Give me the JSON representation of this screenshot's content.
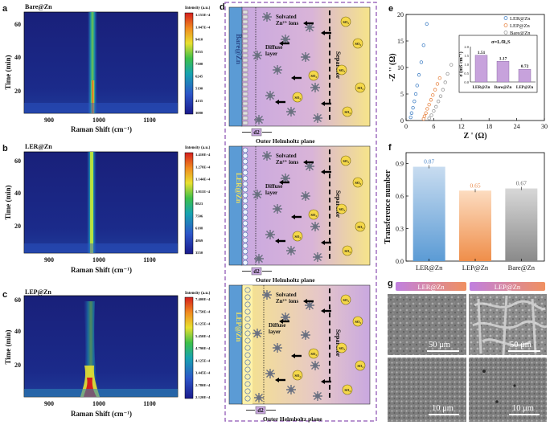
{
  "panel_letters": {
    "a": "a",
    "b": "b",
    "c": "c",
    "d": "d",
    "e": "e",
    "f": "f",
    "g": "g"
  },
  "raman": [
    {
      "sample": "Bare@Zn",
      "xlabel": "Raman Shift (cm⁻¹)",
      "ylabel": "Time (min)",
      "yticks": [
        "20",
        "40",
        "60"
      ],
      "xticks": [
        "900",
        "1000",
        "1100"
      ],
      "cb_title": "Intensity (a.u.)",
      "cb_ticks": [
        "1.153E+4",
        "1.047E+4",
        "9410",
        "8355",
        "7300",
        "6245",
        "5190",
        "4135",
        "3080"
      ]
    },
    {
      "sample": "LER@Zn",
      "xlabel": "Raman Shift (cm⁻¹)",
      "ylabel": "Time (min)",
      "yticks": [
        "20",
        "40",
        "60"
      ],
      "xticks": [
        "900",
        "1000",
        "1100"
      ],
      "cb_title": "Intensity (a.u.)",
      "cb_ticks": [
        "1.410E+4",
        "1.278E+4",
        "1.144E+4",
        "1.011E+4",
        "8823",
        "7506",
        "6188",
        "4869",
        "3550"
      ]
    },
    {
      "sample": "LEP@Zn",
      "xlabel": "Raman Shift (cm⁻¹)",
      "ylabel": "Time (min)",
      "yticks": [
        "20",
        "40",
        "60"
      ],
      "xticks": [
        "900",
        "1000",
        "1100"
      ],
      "cb_title": "Intensity (a.u.)",
      "cb_ticks": [
        "7.400E+4",
        "6.750E+4",
        "6.125E+4",
        "5.450E+4",
        "4.790E+4",
        "4.125E+4",
        "3.445E+4",
        "2.780E+4",
        "2.120E+4"
      ]
    }
  ],
  "schematic": {
    "panels": [
      {
        "electrode": "Bare@Zn",
        "ions": "Solvated Zn²⁺ ions",
        "diffuse": "Diffuse layer",
        "separator": "Separator",
        "d2": "d2",
        "plane": "Outer Helmholtz plane"
      },
      {
        "electrode": "LER@Zn",
        "ions": "Solvated Zn²⁺ ions",
        "diffuse": "Diffuse layer",
        "separator": "Separator",
        "d2": "d2",
        "plane": "Outer Helmholtz plane"
      },
      {
        "electrode": "LEP@Zn",
        "ions": "Solvated Zn²⁺ ions",
        "diffuse": "Diffuse layer",
        "separator": "Separator",
        "d2": "d2",
        "plane": "Outer Helmholtz plane"
      }
    ],
    "so4": "SO₄",
    "colors": {
      "electrode": "#5b9bd5",
      "gradient_start": "#c9a8e0",
      "gradient_end": "#f6e48a",
      "frame": "#a070c0"
    }
  },
  "chart_data": [
    {
      "panel": "e",
      "type": "scatter",
      "xlabel": "Z ' (Ω)",
      "ylabel": "-Z '' (Ω)",
      "xlim": [
        0,
        30
      ],
      "ylim": [
        0,
        20
      ],
      "xticks": [
        "0",
        "6",
        "12",
        "18",
        "24",
        "30"
      ],
      "yticks": [
        "0",
        "5",
        "10",
        "15",
        "20"
      ],
      "series": [
        {
          "name": "LER@Zn",
          "color": "#4a86c8",
          "x": [
            1.0,
            1.2,
            1.5,
            1.8,
            2.1,
            2.4,
            2.8,
            3.3,
            3.8,
            4.5
          ],
          "y": [
            0.6,
            1.4,
            2.4,
            3.6,
            5.0,
            6.6,
            8.6,
            11.0,
            14.2,
            18.2
          ]
        },
        {
          "name": "LEP@Zn",
          "color": "#e8894a",
          "x": [
            3.8,
            4.0,
            4.3,
            4.6,
            5.0,
            5.4,
            5.8,
            6.3,
            6.8,
            7.3
          ],
          "y": [
            0.3,
            0.8,
            1.4,
            2.2,
            3.0,
            3.9,
            4.8,
            5.8,
            6.9,
            8.0
          ]
        },
        {
          "name": "Bare@Zn",
          "color": "#9a9a9a",
          "x": [
            5.0,
            5.5,
            6.0,
            6.5,
            7.0,
            7.5,
            8.0,
            8.5,
            9.0,
            9.8
          ],
          "y": [
            0.4,
            1.0,
            1.8,
            2.6,
            3.6,
            4.6,
            5.8,
            7.2,
            8.8,
            10.5
          ]
        }
      ],
      "inset": {
        "type": "bar",
        "categories": [
          "LER@Zn",
          "Bare@Zn",
          "LEP@Zn"
        ],
        "values": [
          1.51,
          1.17,
          0.72
        ],
        "labels": [
          "1.51",
          "1.17",
          "0.72"
        ],
        "ylabel": "σ (mS cm⁻¹)",
        "formula": "σ=L/RₐS",
        "ylim": [
          0,
          2
        ],
        "yticks": [
          "0.0",
          "0.5",
          "1.0",
          "1.5",
          "2.0"
        ],
        "color": "#c7a2dc"
      }
    },
    {
      "panel": "f",
      "type": "bar",
      "categories": [
        "LER@Zn",
        "LEP@Zn",
        "Bare@Zn"
      ],
      "values": [
        0.87,
        0.65,
        0.67
      ],
      "labels": [
        "0.87",
        "0.65",
        "0.67"
      ],
      "label_colors": [
        "#4a86c8",
        "#e8894a",
        "#666666"
      ],
      "colors": [
        "#8fc1ee",
        "#f5b889",
        "#a8a8a8"
      ],
      "ylabel": "Transference number",
      "ylim": [
        0,
        1.0
      ],
      "yticks": [
        "0.0",
        "0.3",
        "0.6",
        "0.9"
      ]
    }
  ],
  "sem": {
    "labels": [
      "LER@Zn",
      "LEP@Zn"
    ],
    "scale_top": "50 μm",
    "scale_bottom": "10 μm"
  }
}
